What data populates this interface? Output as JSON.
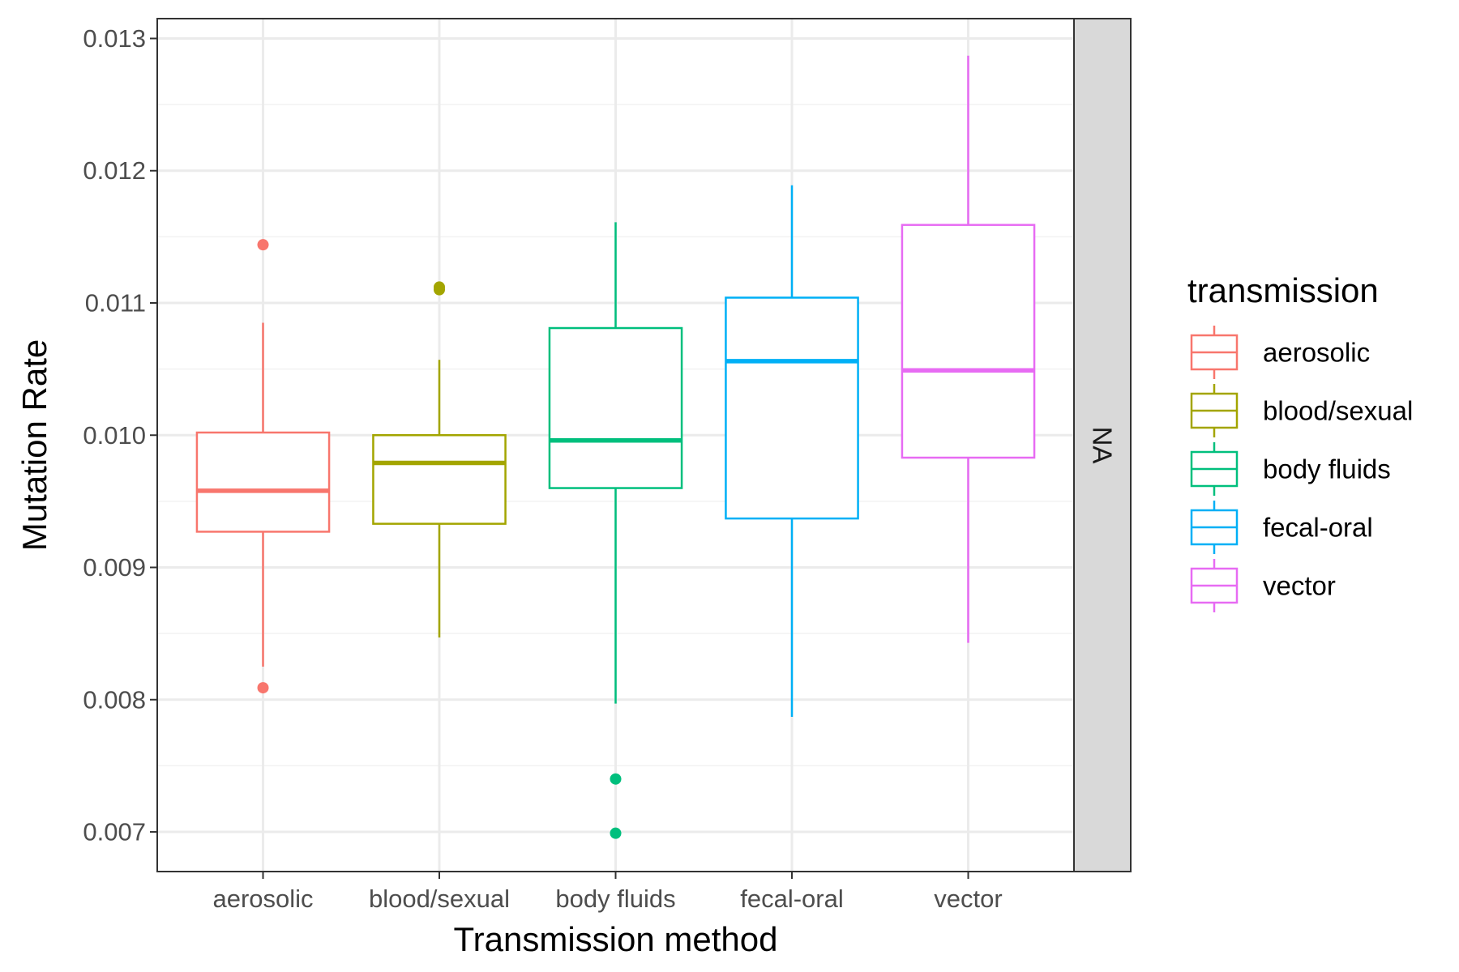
{
  "chart_data": {
    "type": "boxplot",
    "xlabel": "Transmission method",
    "ylabel": "Mutation Rate",
    "ylim": [
      0.0067,
      0.01315
    ],
    "yticks": [
      0.007,
      0.008,
      0.009,
      0.01,
      0.011,
      0.012,
      0.013
    ],
    "ytick_labels": [
      "0.007",
      "0.008",
      "0.009",
      "0.010",
      "0.011",
      "0.012",
      "0.013"
    ],
    "grid": true,
    "facet_strip_label": "NA",
    "categories": [
      "aerosolic",
      "blood/sexual",
      "body fluids",
      "fecal-oral",
      "vector"
    ],
    "series": [
      {
        "name": "aerosolic",
        "color": "#F8766D",
        "whisker_low": 0.00825,
        "q1": 0.00927,
        "median": 0.00958,
        "q3": 0.01002,
        "whisker_high": 0.01085,
        "outliers": [
          0.01144,
          0.00809
        ]
      },
      {
        "name": "blood/sexual",
        "color": "#A3A500",
        "whisker_low": 0.00847,
        "q1": 0.00933,
        "median": 0.00979,
        "q3": 0.01,
        "whisker_high": 0.01057,
        "outliers": [
          0.0111,
          0.01112
        ]
      },
      {
        "name": "body fluids",
        "color": "#00BF7D",
        "whisker_low": 0.00797,
        "q1": 0.0096,
        "median": 0.00996,
        "q3": 0.01081,
        "whisker_high": 0.01161,
        "outliers": [
          0.0074,
          0.00699
        ]
      },
      {
        "name": "fecal-oral",
        "color": "#00B0F6",
        "whisker_low": 0.00787,
        "q1": 0.00937,
        "median": 0.01056,
        "q3": 0.01104,
        "whisker_high": 0.01189,
        "outliers": []
      },
      {
        "name": "vector",
        "color": "#E76BF3",
        "whisker_low": 0.00843,
        "q1": 0.00983,
        "median": 0.01049,
        "q3": 0.01159,
        "whisker_high": 0.01287,
        "outliers": []
      }
    ],
    "legend": {
      "title": "transmission",
      "position": "right"
    }
  }
}
